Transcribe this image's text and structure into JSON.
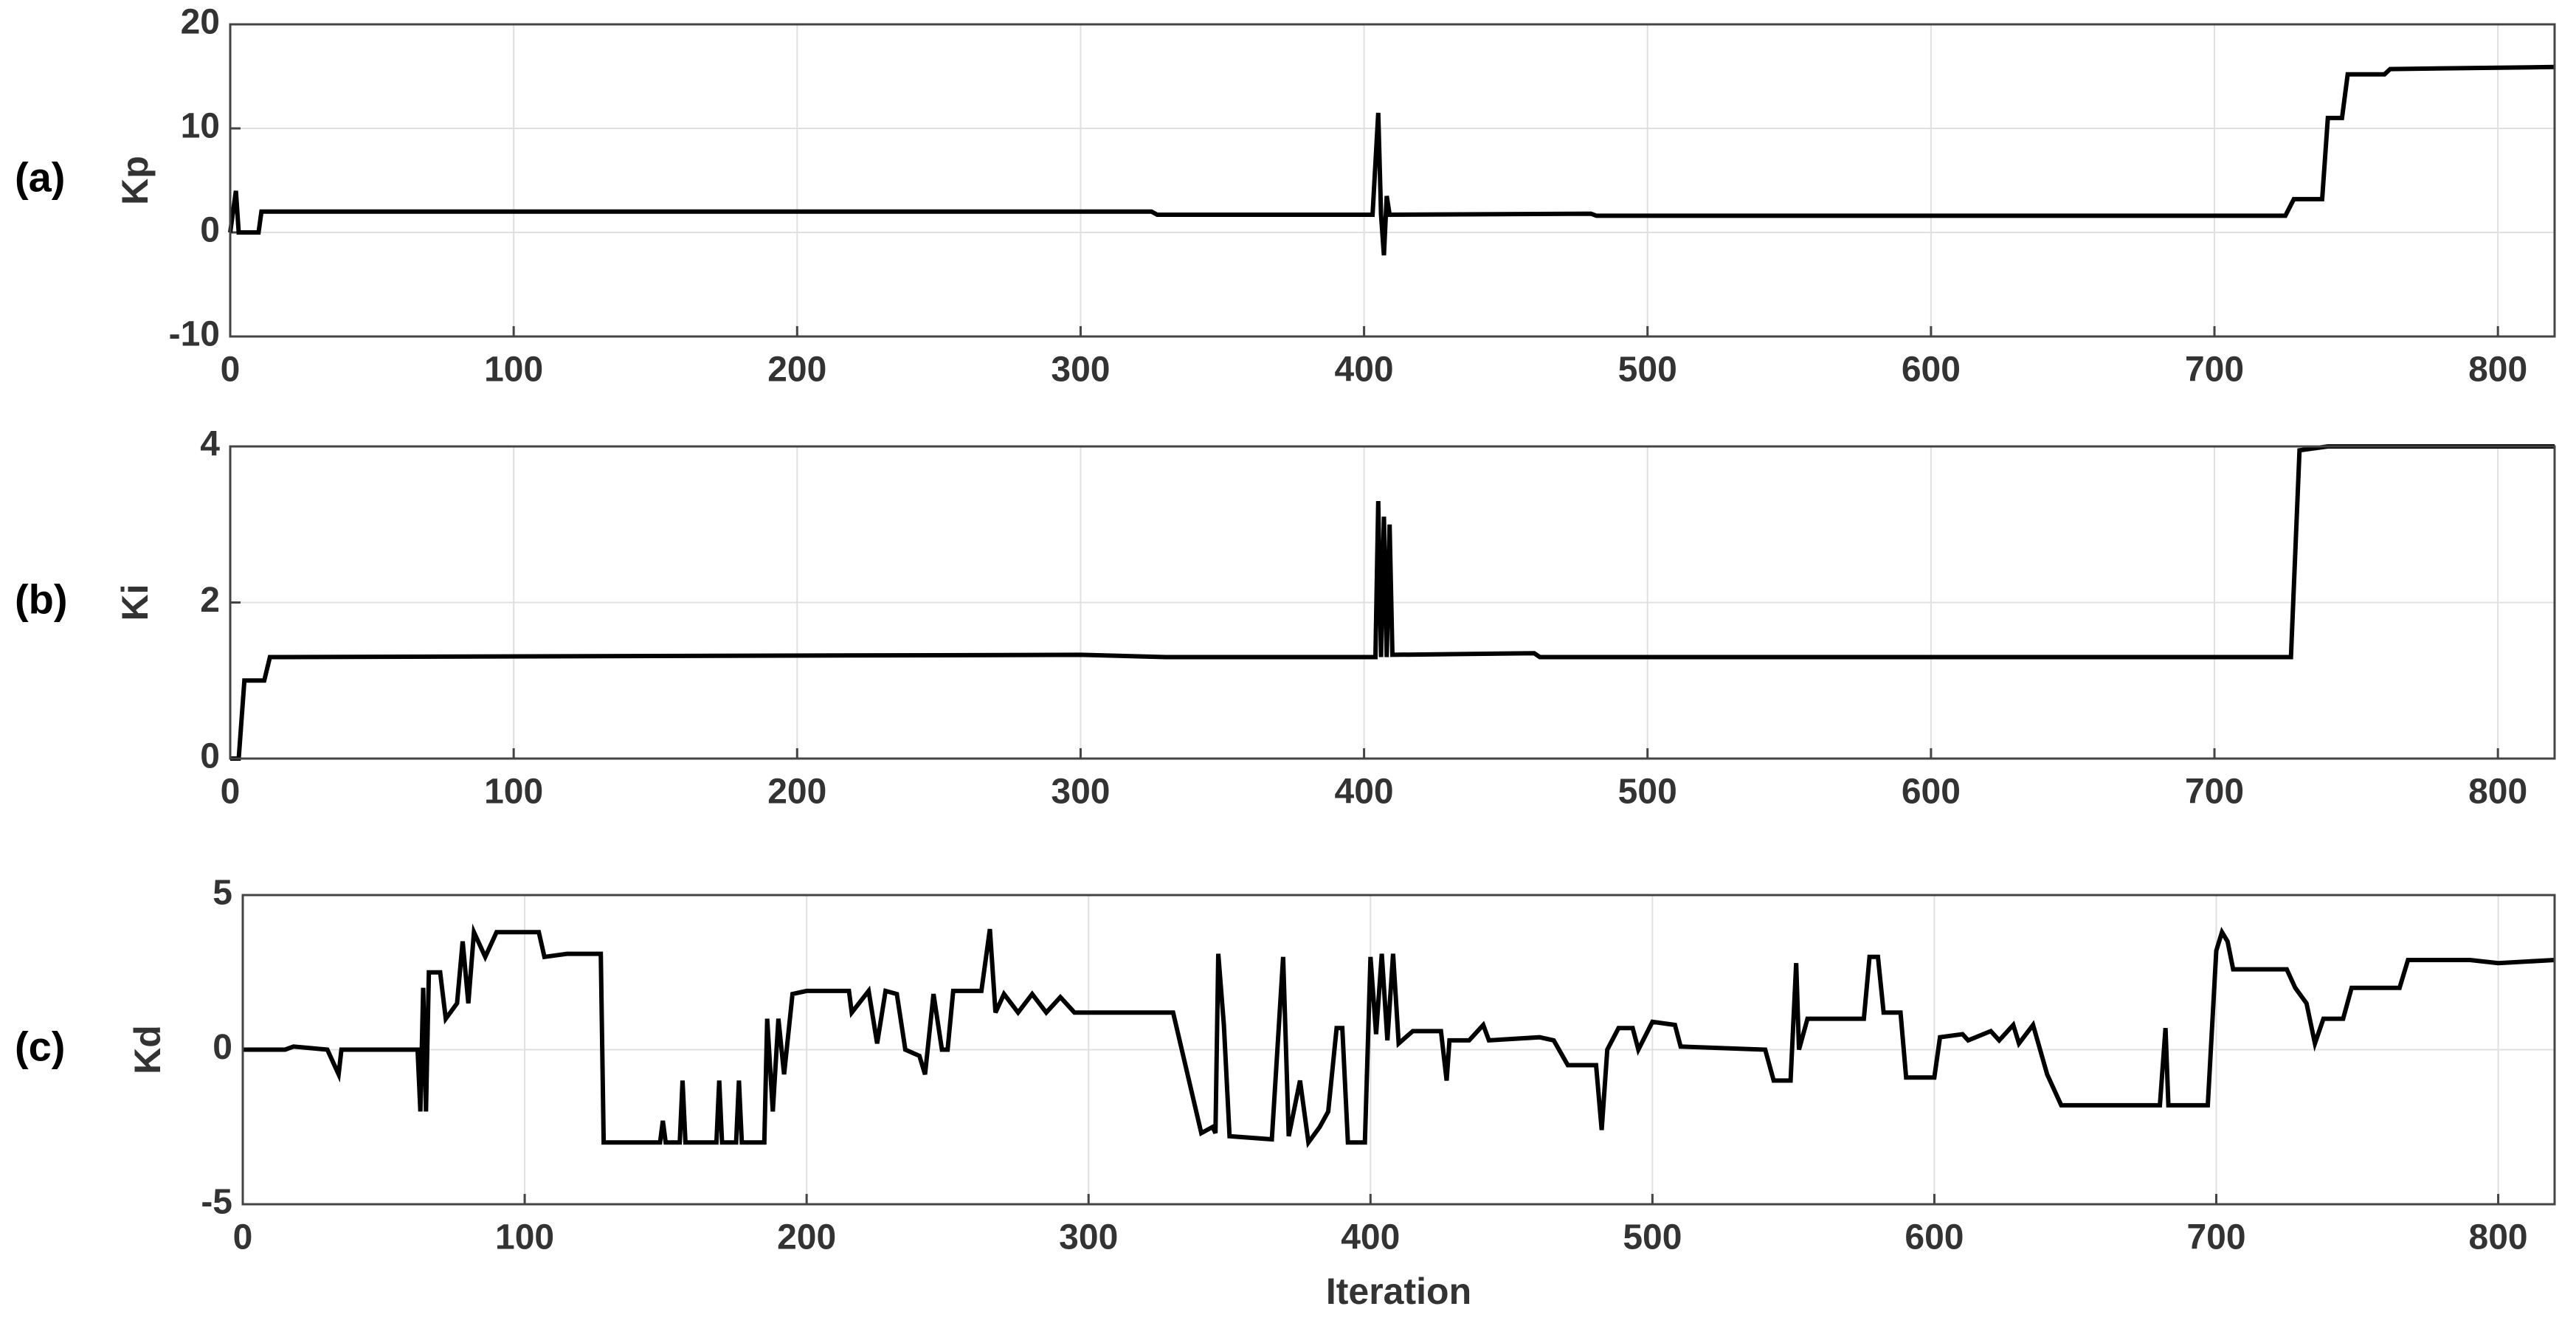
{
  "chart_data": [
    {
      "type": "line",
      "panel_label": "(a)",
      "ylabel": "Kp",
      "color": "#000000",
      "grid": true,
      "xlim": [
        0,
        820
      ],
      "xticks": [
        0,
        100,
        200,
        300,
        400,
        500,
        600,
        700,
        800
      ],
      "ylim": [
        -10,
        20
      ],
      "yticks": [
        -10,
        0,
        10,
        20
      ],
      "x": [
        0,
        2,
        3,
        10,
        11,
        325,
        327,
        403,
        405,
        406,
        407,
        408,
        409,
        480,
        482,
        725,
        728,
        738,
        740,
        745,
        747,
        760,
        762,
        820
      ],
      "values": [
        0,
        4,
        0,
        0,
        2,
        2,
        1.7,
        1.7,
        11.5,
        1.7,
        -2.2,
        3.5,
        1.7,
        1.8,
        1.6,
        1.6,
        3.2,
        3.2,
        11,
        11,
        15.2,
        15.2,
        15.7,
        15.9
      ]
    },
    {
      "type": "line",
      "panel_label": "(b)",
      "ylabel": "Ki",
      "color": "#000000",
      "grid": true,
      "xlim": [
        0,
        820
      ],
      "xticks": [
        0,
        100,
        200,
        300,
        400,
        500,
        600,
        700,
        800
      ],
      "ylim": [
        0,
        4
      ],
      "yticks": [
        0,
        2,
        4
      ],
      "x": [
        0,
        3,
        5,
        12,
        14,
        300,
        330,
        404,
        405,
        406,
        407,
        408,
        409,
        410,
        460,
        462,
        727,
        730,
        740,
        820
      ],
      "values": [
        0,
        0,
        1,
        1,
        1.3,
        1.33,
        1.3,
        1.3,
        3.3,
        1.3,
        3.1,
        1.3,
        3,
        1.33,
        1.35,
        1.3,
        1.3,
        3.95,
        4,
        4
      ]
    },
    {
      "type": "line",
      "panel_label": "(c)",
      "ylabel": "Kd",
      "xlabel": "Iteration",
      "color": "#000000",
      "grid": true,
      "xlim": [
        0,
        820
      ],
      "xticks": [
        0,
        100,
        200,
        300,
        400,
        500,
        600,
        700,
        800
      ],
      "ylim": [
        -5,
        5
      ],
      "yticks": [
        -5,
        0,
        5
      ],
      "x": [
        0,
        15,
        18,
        30,
        34,
        35,
        62,
        63,
        64,
        65,
        66,
        70,
        72,
        76,
        78,
        80,
        82,
        86,
        90,
        105,
        107,
        115,
        127,
        128,
        148,
        149,
        150,
        155,
        156,
        157,
        168,
        169,
        170,
        175,
        176,
        177,
        185,
        186,
        188,
        190,
        192,
        195,
        200,
        215,
        216,
        222,
        225,
        228,
        232,
        235,
        240,
        242,
        245,
        248,
        250,
        252,
        262,
        265,
        267,
        270,
        275,
        280,
        285,
        290,
        295,
        330,
        340,
        344,
        345,
        346,
        348,
        350,
        365,
        369,
        371,
        375,
        378,
        382,
        385,
        388,
        390,
        392,
        398,
        400,
        402,
        404,
        406,
        408,
        410,
        415,
        425,
        427,
        428,
        435,
        440,
        442,
        460,
        465,
        470,
        480,
        482,
        484,
        488,
        493,
        495,
        500,
        508,
        510,
        540,
        543,
        549,
        551,
        552,
        555,
        575,
        577,
        580,
        582,
        588,
        590,
        600,
        602,
        610,
        612,
        620,
        623,
        628,
        630,
        635,
        640,
        645,
        680,
        682,
        683,
        697,
        700,
        702,
        704,
        706,
        725,
        728,
        732,
        735,
        738,
        745,
        748,
        765,
        768,
        790,
        800,
        820
      ],
      "values": [
        0,
        0,
        0.1,
        0,
        -0.8,
        0,
        0,
        -2,
        2,
        -2,
        2.5,
        2.5,
        1,
        1.5,
        3.5,
        1.5,
        3.8,
        3,
        3.8,
        3.8,
        3,
        3.1,
        3.1,
        -3,
        -3,
        -2.3,
        -3,
        -3,
        -1,
        -3,
        -3,
        -1,
        -3,
        -3,
        -1,
        -3,
        -3,
        1,
        -2,
        1,
        -0.8,
        1.8,
        1.9,
        1.9,
        1.2,
        1.9,
        0.2,
        1.9,
        1.8,
        0,
        -0.2,
        -0.8,
        1.8,
        0,
        0,
        1.9,
        1.9,
        3.9,
        1.2,
        1.8,
        1.2,
        1.8,
        1.2,
        1.7,
        1.2,
        1.2,
        -2.7,
        -2.5,
        -2.7,
        3.1,
        0.8,
        -2.8,
        -2.9,
        3,
        -2.8,
        -1,
        -3,
        -2.5,
        -2,
        0.7,
        0.7,
        -3,
        -3,
        3,
        0.5,
        3.1,
        0.3,
        3.1,
        0.2,
        0.6,
        0.6,
        -1,
        0.3,
        0.3,
        0.8,
        0.3,
        0.4,
        0.3,
        -0.5,
        -0.5,
        -2.6,
        0,
        0.7,
        0.7,
        0,
        0.9,
        0.8,
        0.1,
        0,
        -1,
        -1,
        2.8,
        0,
        1,
        1,
        3,
        3,
        1.2,
        1.2,
        -0.9,
        -0.9,
        0.4,
        0.5,
        0.3,
        0.6,
        0.3,
        0.8,
        0.2,
        0.8,
        -0.8,
        -1.8,
        -1.8,
        0.7,
        -1.8,
        -1.8,
        3.2,
        3.8,
        3.5,
        2.6,
        2.6,
        2,
        1.5,
        0.2,
        1,
        1,
        2,
        2,
        2.9,
        2.9,
        2.8,
        2.9
      ]
    }
  ]
}
